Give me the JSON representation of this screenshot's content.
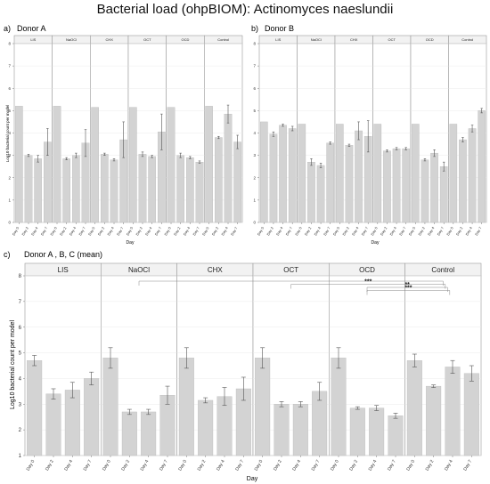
{
  "title": "Bacterial load (ohpBIOM): Actinomyces naeslundii",
  "colors": {
    "bar": "#d3d3d3",
    "bar_edge": "#b0b0b0",
    "strip": "#f2f2f2",
    "border": "#9a9a9a",
    "error": "#555555",
    "text": "#222222"
  },
  "chart_data": [
    {
      "panel_label": "a)",
      "panel_title": "Donor A",
      "type": "bar",
      "ylabel": "Log10 bacterial count per model",
      "xlabel": "Day",
      "ylim": [
        0,
        8
      ],
      "yticks": [
        0,
        1,
        2,
        3,
        4,
        5,
        6,
        7,
        8
      ],
      "grid": true,
      "categories": [
        "Day 0",
        "Day 2",
        "Day 4",
        "Day 7"
      ],
      "facets": [
        {
          "name": "LIS",
          "values": [
            5.2,
            3.0,
            2.85,
            3.6
          ],
          "errors": [
            0,
            0.05,
            0.15,
            0.6
          ]
        },
        {
          "name": "NaOCl",
          "values": [
            5.2,
            2.85,
            3.0,
            3.55
          ],
          "errors": [
            0,
            0.05,
            0.1,
            0.6
          ]
        },
        {
          "name": "CHX",
          "values": [
            5.15,
            3.05,
            2.8,
            3.7
          ],
          "errors": [
            0,
            0.05,
            0.05,
            0.8
          ]
        },
        {
          "name": "OCT",
          "values": [
            5.15,
            3.05,
            2.95,
            4.05
          ],
          "errors": [
            0,
            0.1,
            0.05,
            0.8
          ]
        },
        {
          "name": "OCD",
          "values": [
            5.15,
            3.0,
            2.9,
            2.7
          ],
          "errors": [
            0,
            0.1,
            0.05,
            0.05
          ]
        },
        {
          "name": "Control",
          "values": [
            5.2,
            3.8,
            4.85,
            3.6
          ],
          "errors": [
            0,
            0.05,
            0.4,
            0.3
          ]
        }
      ]
    },
    {
      "panel_label": "b)",
      "panel_title": "Donor B",
      "type": "bar",
      "ylabel": "",
      "xlabel": "Day",
      "ylim": [
        0,
        8
      ],
      "yticks": [
        0,
        1,
        2,
        3,
        4,
        5,
        6,
        7,
        8
      ],
      "grid": true,
      "categories": [
        "Day 0",
        "Day 2",
        "Day 4",
        "Day 7"
      ],
      "facets": [
        {
          "name": "LIS",
          "values": [
            4.5,
            3.95,
            4.35,
            4.2
          ],
          "errors": [
            0,
            0.1,
            0.05,
            0.1
          ]
        },
        {
          "name": "NaOCl",
          "values": [
            4.4,
            2.7,
            2.55,
            3.55
          ],
          "errors": [
            0,
            0.15,
            0.1,
            0.05
          ]
        },
        {
          "name": "CHX",
          "values": [
            4.4,
            3.45,
            4.1,
            3.85
          ],
          "errors": [
            0,
            0.05,
            0.4,
            0.7
          ]
        },
        {
          "name": "OCT",
          "values": [
            4.4,
            3.2,
            3.3,
            3.3
          ],
          "errors": [
            0,
            0.05,
            0.05,
            0.05
          ]
        },
        {
          "name": "OCD",
          "values": [
            4.4,
            2.8,
            3.1,
            2.5
          ],
          "errors": [
            0,
            0.05,
            0.15,
            0.2
          ]
        },
        {
          "name": "Control",
          "values": [
            4.4,
            3.7,
            4.2,
            5.0
          ],
          "errors": [
            0,
            0.1,
            0.15,
            0.1
          ]
        }
      ]
    },
    {
      "panel_label": "c)",
      "panel_title": "Donor A , B, C (mean)",
      "type": "bar",
      "ylabel": "Log10 bacterial count per model",
      "xlabel": "Day",
      "ylim": [
        1,
        8
      ],
      "yticks": [
        1,
        2,
        3,
        4,
        5,
        6,
        7,
        8
      ],
      "grid": true,
      "categories": [
        "Day 0",
        "Day 2",
        "Day 4",
        "Day 7"
      ],
      "facets": [
        {
          "name": "LIS",
          "values": [
            4.7,
            3.4,
            3.55,
            4.0
          ],
          "errors": [
            0.2,
            0.2,
            0.3,
            0.25
          ]
        },
        {
          "name": "NaOCl",
          "values": [
            4.8,
            2.7,
            2.7,
            3.35
          ],
          "errors": [
            0.4,
            0.1,
            0.1,
            0.35
          ]
        },
        {
          "name": "CHX",
          "values": [
            4.8,
            3.15,
            3.3,
            3.6
          ],
          "errors": [
            0.4,
            0.1,
            0.35,
            0.45
          ]
        },
        {
          "name": "OCT",
          "values": [
            4.8,
            3.0,
            3.0,
            3.5
          ],
          "errors": [
            0.4,
            0.1,
            0.1,
            0.35
          ]
        },
        {
          "name": "OCD",
          "values": [
            4.8,
            2.85,
            2.85,
            2.55
          ],
          "errors": [
            0.4,
            0.05,
            0.1,
            0.1
          ]
        },
        {
          "name": "Control",
          "values": [
            4.7,
            3.7,
            4.45,
            4.2
          ],
          "errors": [
            0.25,
            0.05,
            0.25,
            0.3
          ]
        }
      ],
      "significance": [
        {
          "from": "NaOCl",
          "to": "Control",
          "label": ""
        },
        {
          "from": "OCT",
          "to": "Control",
          "label": "***"
        },
        {
          "from": "OCD",
          "to": "Control",
          "label": "**"
        },
        {
          "from": "OCD",
          "to": "Control",
          "label": "***"
        }
      ]
    }
  ]
}
